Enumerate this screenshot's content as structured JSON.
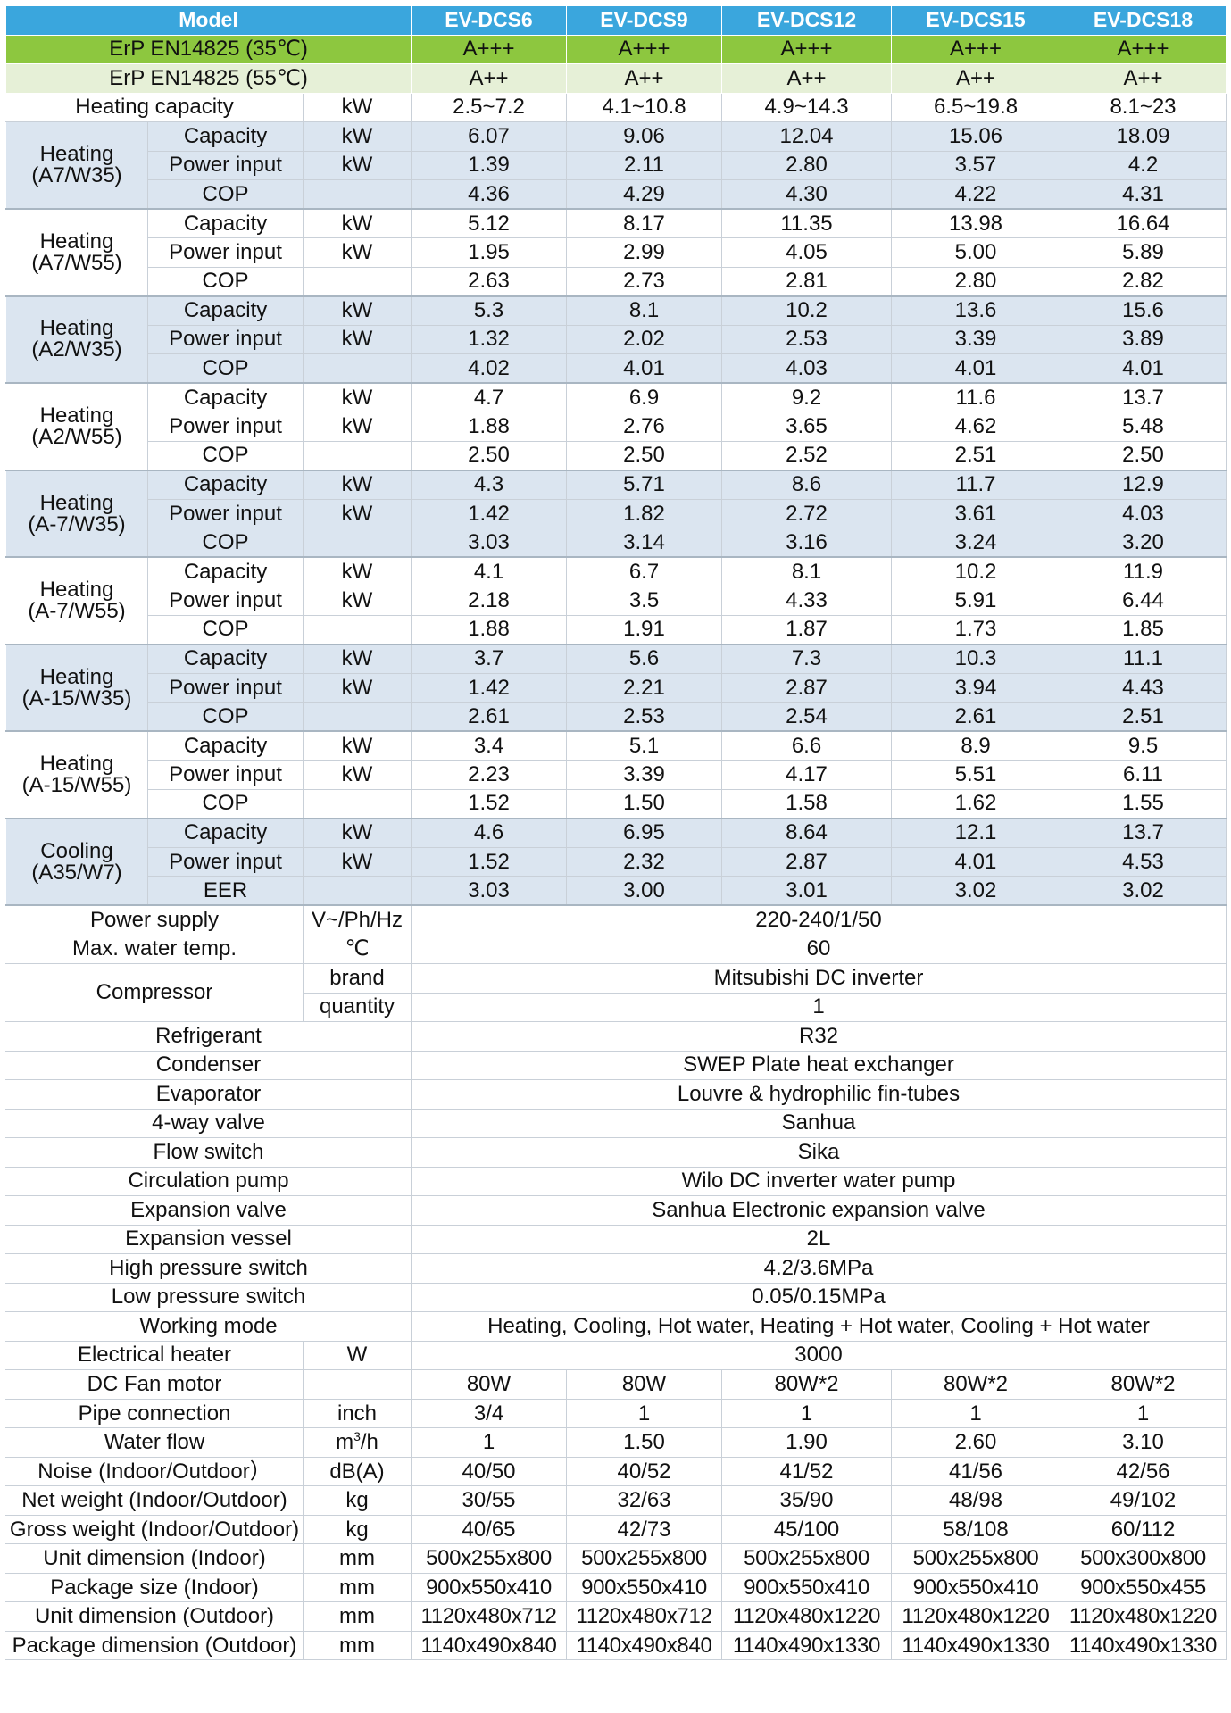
{
  "header": {
    "label": "Model",
    "models": [
      "EV-DCS6",
      "EV-DCS9",
      "EV-DCS12",
      "EV-DCS15",
      "EV-DCS18"
    ]
  },
  "erp35": {
    "label": "ErP EN14825 (35℃)",
    "values": [
      "A+++",
      "A+++",
      "A+++",
      "A+++",
      "A+++"
    ]
  },
  "erp55": {
    "label": "ErP EN14825 (55℃)",
    "values": [
      "A++",
      "A++",
      "A++",
      "A++",
      "A++"
    ]
  },
  "heating_capacity": {
    "label": "Heating capacity",
    "unit": "kW",
    "values": [
      "2.5~7.2",
      "4.1~10.8",
      "4.9~14.3",
      "6.5~19.8",
      "8.1~23"
    ]
  },
  "groups": [
    {
      "name": "Heating\n(A7/W35)",
      "rows": [
        {
          "label": "Capacity",
          "unit": "kW",
          "values": [
            "6.07",
            "9.06",
            "12.04",
            "15.06",
            "18.09"
          ]
        },
        {
          "label": "Power input",
          "unit": "kW",
          "values": [
            "1.39",
            "2.11",
            "2.80",
            "3.57",
            "4.2"
          ]
        },
        {
          "label": "COP",
          "unit": "",
          "values": [
            "4.36",
            "4.29",
            "4.30",
            "4.22",
            "4.31"
          ]
        }
      ]
    },
    {
      "name": "Heating\n(A7/W55)",
      "rows": [
        {
          "label": "Capacity",
          "unit": "kW",
          "values": [
            "5.12",
            "8.17",
            "11.35",
            "13.98",
            "16.64"
          ]
        },
        {
          "label": "Power input",
          "unit": "kW",
          "values": [
            "1.95",
            "2.99",
            "4.05",
            "5.00",
            "5.89"
          ]
        },
        {
          "label": "COP",
          "unit": "",
          "values": [
            "2.63",
            "2.73",
            "2.81",
            "2.80",
            "2.82"
          ]
        }
      ]
    },
    {
      "name": "Heating\n(A2/W35)",
      "rows": [
        {
          "label": "Capacity",
          "unit": "kW",
          "values": [
            "5.3",
            "8.1",
            "10.2",
            "13.6",
            "15.6"
          ]
        },
        {
          "label": "Power input",
          "unit": "kW",
          "values": [
            "1.32",
            "2.02",
            "2.53",
            "3.39",
            "3.89"
          ]
        },
        {
          "label": "COP",
          "unit": "",
          "values": [
            "4.02",
            "4.01",
            "4.03",
            "4.01",
            "4.01"
          ]
        }
      ]
    },
    {
      "name": "Heating\n(A2/W55)",
      "rows": [
        {
          "label": "Capacity",
          "unit": "kW",
          "values": [
            "4.7",
            "6.9",
            "9.2",
            "11.6",
            "13.7"
          ]
        },
        {
          "label": "Power input",
          "unit": "kW",
          "values": [
            "1.88",
            "2.76",
            "3.65",
            "4.62",
            "5.48"
          ]
        },
        {
          "label": "COP",
          "unit": "",
          "values": [
            "2.50",
            "2.50",
            "2.52",
            "2.51",
            "2.50"
          ]
        }
      ]
    },
    {
      "name": "Heating\n(A-7/W35)",
      "rows": [
        {
          "label": "Capacity",
          "unit": "kW",
          "values": [
            "4.3",
            "5.71",
            "8.6",
            "11.7",
            "12.9"
          ]
        },
        {
          "label": "Power input",
          "unit": "kW",
          "values": [
            "1.42",
            "1.82",
            "2.72",
            "3.61",
            "4.03"
          ]
        },
        {
          "label": "COP",
          "unit": "",
          "values": [
            "3.03",
            "3.14",
            "3.16",
            "3.24",
            "3.20"
          ]
        }
      ]
    },
    {
      "name": "Heating\n(A-7/W55)",
      "rows": [
        {
          "label": "Capacity",
          "unit": "kW",
          "values": [
            "4.1",
            "6.7",
            "8.1",
            "10.2",
            "11.9"
          ]
        },
        {
          "label": "Power input",
          "unit": "kW",
          "values": [
            "2.18",
            "3.5",
            "4.33",
            "5.91",
            "6.44"
          ]
        },
        {
          "label": "COP",
          "unit": "",
          "values": [
            "1.88",
            "1.91",
            "1.87",
            "1.73",
            "1.85"
          ]
        }
      ]
    },
    {
      "name": "Heating\n(A-15/W35)",
      "rows": [
        {
          "label": "Capacity",
          "unit": "kW",
          "values": [
            "3.7",
            "5.6",
            "7.3",
            "10.3",
            "11.1"
          ]
        },
        {
          "label": "Power input",
          "unit": "kW",
          "values": [
            "1.42",
            "2.21",
            "2.87",
            "3.94",
            "4.43"
          ]
        },
        {
          "label": "COP",
          "unit": "",
          "values": [
            "2.61",
            "2.53",
            "2.54",
            "2.61",
            "2.51"
          ]
        }
      ]
    },
    {
      "name": "Heating\n(A-15/W55)",
      "rows": [
        {
          "label": "Capacity",
          "unit": "kW",
          "values": [
            "3.4",
            "5.1",
            "6.6",
            "8.9",
            "9.5"
          ]
        },
        {
          "label": "Power input",
          "unit": "kW",
          "values": [
            "2.23",
            "3.39",
            "4.17",
            "5.51",
            "6.11"
          ]
        },
        {
          "label": "COP",
          "unit": "",
          "values": [
            "1.52",
            "1.50",
            "1.58",
            "1.62",
            "1.55"
          ]
        }
      ]
    },
    {
      "name": "Cooling\n(A35/W7)",
      "rows": [
        {
          "label": "Capacity",
          "unit": "kW",
          "values": [
            "4.6",
            "6.95",
            "8.64",
            "12.1",
            "13.7"
          ]
        },
        {
          "label": "Power input",
          "unit": "kW",
          "values": [
            "1.52",
            "2.32",
            "2.87",
            "4.01",
            "4.53"
          ]
        },
        {
          "label": "EER",
          "unit": "",
          "values": [
            "3.03",
            "3.00",
            "3.01",
            "3.02",
            "3.02"
          ]
        }
      ]
    }
  ],
  "power_supply": {
    "label": "Power supply",
    "unit": "V~/Ph/Hz",
    "value": "220-240/1/50"
  },
  "max_water_temp": {
    "label": "Max. water temp.",
    "unit": "℃",
    "value": "60"
  },
  "compressor": {
    "label": "Compressor",
    "brand": {
      "label": "brand",
      "value": "Mitsubishi DC inverter"
    },
    "quantity": {
      "label": "quantity",
      "value": "1"
    }
  },
  "shared_rows": [
    {
      "label": "Refrigerant",
      "value": "R32"
    },
    {
      "label": "Condenser",
      "value": "SWEP Plate heat exchanger"
    },
    {
      "label": "Evaporator",
      "value": "Louvre & hydrophilic  fin-tubes"
    },
    {
      "label": "4-way valve",
      "value": "Sanhua"
    },
    {
      "label": "Flow switch",
      "value": "Sika"
    },
    {
      "label": "Circulation pump",
      "value": "Wilo DC inverter water pump"
    },
    {
      "label": "Expansion valve",
      "value": "Sanhua Electronic  expansion valve"
    },
    {
      "label": "Expansion vessel",
      "value": "2L"
    },
    {
      "label": "High pressure switch",
      "value": "4.2/3.6MPa"
    },
    {
      "label": "Low pressure switch",
      "value": "0.05/0.15MPa"
    },
    {
      "label": "Working mode",
      "value": "Heating, Cooling, Hot water, Heating  + Hot  water, Cooling + Hot water"
    }
  ],
  "electrical_heater": {
    "label": "Electrical  heater",
    "unit": "W",
    "value": "3000"
  },
  "bottom_rows": [
    {
      "label": "DC Fan motor",
      "unit": "",
      "values": [
        "80W",
        "80W",
        "80W*2",
        "80W*2",
        "80W*2"
      ]
    },
    {
      "label": "Pipe connection",
      "unit": "inch",
      "values": [
        "3/4",
        "1",
        "1",
        "1",
        "1"
      ]
    },
    {
      "label": "Water flow",
      "unit": "m3/h",
      "values": [
        "1",
        "1.50",
        "1.90",
        "2.60",
        "3.10"
      ]
    },
    {
      "label": "Noise (Indoor/Outdoor）",
      "unit": "dB(A)",
      "values": [
        "40/50",
        "40/52",
        "41/52",
        "41/56",
        "42/56"
      ]
    },
    {
      "label": "Net weight (Indoor/Outdoor)",
      "unit": "kg",
      "values": [
        "30/55",
        "32/63",
        "35/90",
        "48/98",
        "49/102"
      ]
    },
    {
      "label": "Gross  weight (Indoor/Outdoor)",
      "unit": "kg",
      "values": [
        "40/65",
        "42/73",
        "45/100",
        "58/108",
        "60/112"
      ]
    },
    {
      "label": "Unit dimension (Indoor)",
      "unit": "mm",
      "values": [
        "500x255x800",
        "500x255x800",
        "500x255x800",
        "500x255x800",
        "500x300x800"
      ]
    },
    {
      "label": "Package size (Indoor)",
      "unit": "mm",
      "values": [
        "900x550x410",
        "900x550x410",
        "900x550x410",
        "900x550x410",
        "900x550x455"
      ]
    },
    {
      "label": "Unit dimension (Outdoor)",
      "unit": "mm",
      "values": [
        "1120x480x712",
        "1120x480x712",
        "1120x480x1220",
        "1120x480x1220",
        "1120x480x1220"
      ]
    },
    {
      "label": "Package dimension (Outdoor)",
      "unit": "mm",
      "values": [
        "1140x490x840",
        "1140x490x840",
        "1140x490x1330",
        "1140x490x1330",
        "1140x490x1330"
      ]
    }
  ]
}
